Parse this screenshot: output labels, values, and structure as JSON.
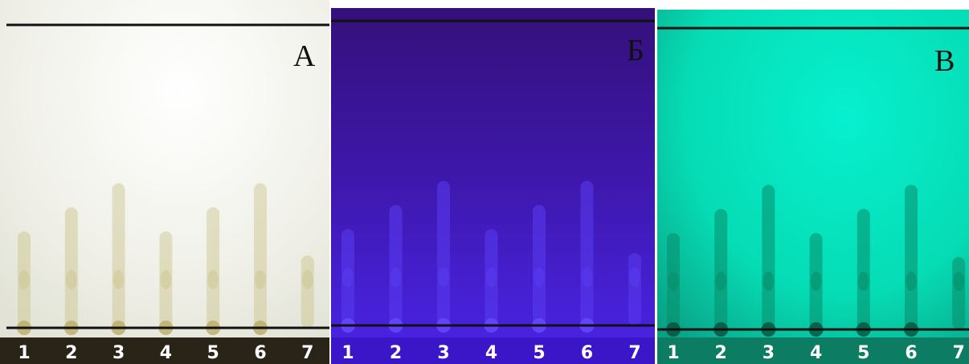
{
  "panels": [
    {
      "label": "А",
      "lanes": [
        "1",
        "2",
        "3",
        "4",
        "5",
        "6",
        "7"
      ]
    },
    {
      "label": "Б",
      "lanes": [
        "1",
        "2",
        "3",
        "4",
        "5",
        "6",
        "7"
      ]
    },
    {
      "label": "В",
      "lanes": [
        "1",
        "2",
        "3",
        "4",
        "5",
        "6",
        "7"
      ]
    }
  ]
}
